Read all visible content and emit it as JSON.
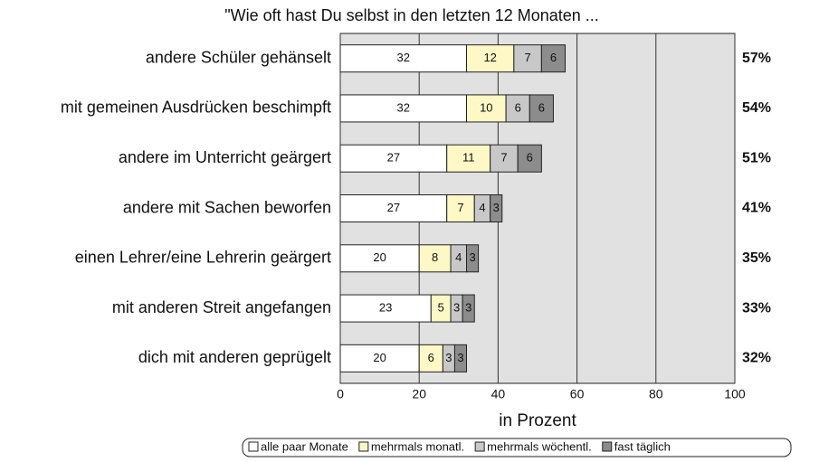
{
  "chart_data": {
    "type": "stacked_barh",
    "title": "\"Wie oft hast Du selbst in den letzten 12 Monaten ...",
    "categories": [
      "andere Schüler gehänselt",
      "mit gemeinen Ausdrücken beschimpft",
      "andere im Unterricht geärgert",
      "andere mit Sachen beworfen",
      "einen Lehrer/eine Lehrerin geärgert",
      "mit anderen Streit angefangen",
      "dich mit anderen geprügelt"
    ],
    "series": [
      {
        "name": "alle paar Monate",
        "color": "#ffffff",
        "values": [
          32,
          32,
          27,
          27,
          20,
          23,
          20
        ]
      },
      {
        "name": "mehrmals monatl.",
        "color": "#fdf8c6",
        "values": [
          12,
          10,
          11,
          7,
          8,
          5,
          6
        ]
      },
      {
        "name": "mehrmals wöchentl.",
        "color": "#c8c8c8",
        "values": [
          7,
          6,
          7,
          4,
          4,
          3,
          3
        ]
      },
      {
        "name": "fast täglich",
        "color": "#8c8c8c",
        "values": [
          6,
          6,
          6,
          3,
          3,
          3,
          3
        ]
      }
    ],
    "totals": {
      "values": [
        57,
        54,
        51,
        41,
        35,
        33,
        32
      ],
      "value_labels": [
        "57%",
        "54%",
        "51%",
        "41%",
        "35%",
        "33%",
        "32%"
      ]
    },
    "xlabel": "in Prozent",
    "xlim": [
      0,
      100
    ],
    "xticks": [
      0,
      20,
      40,
      60,
      80,
      100
    ],
    "grid": true,
    "legend": "bottom"
  }
}
